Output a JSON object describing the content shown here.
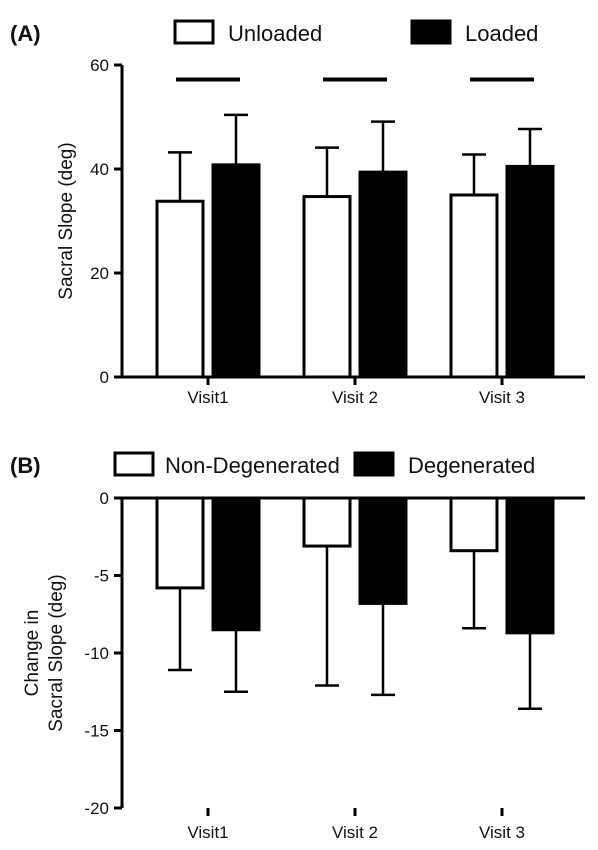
{
  "chart_data": [
    {
      "type": "bar",
      "panel_label": "(A)",
      "categories": [
        "Visit1",
        "Visit 2",
        "Visit 3"
      ],
      "ylabel": [
        "Sacral Slope (deg)"
      ],
      "ylim": [
        0,
        60
      ],
      "yticks": [
        "0",
        "20",
        "40",
        "60"
      ],
      "legend_position": "top",
      "grid": false,
      "series": [
        {
          "name": "Unloaded",
          "fill": "#ffffff",
          "values": [
            33.8,
            34.7,
            35.0
          ],
          "error": [
            9.4,
            9.4,
            7.8
          ]
        },
        {
          "name": "Loaded",
          "fill": "#000000",
          "values": [
            40.8,
            39.4,
            40.5
          ],
          "error": [
            9.6,
            9.7,
            7.2
          ]
        }
      ],
      "significance_bars": [
        {
          "category": "Visit1",
          "y": 57.2
        },
        {
          "category": "Visit 2",
          "y": 57.2
        },
        {
          "category": "Visit 3",
          "y": 57.2
        }
      ]
    },
    {
      "type": "bar",
      "panel_label": "(B)",
      "categories": [
        "Visit1",
        "Visit 2",
        "Visit 3"
      ],
      "ylabel": [
        "Change in",
        "Sacral Slope (deg)"
      ],
      "ylim": [
        -20,
        0
      ],
      "yticks": [
        "0",
        "-5",
        "-10",
        "-15",
        "-20"
      ],
      "legend_position": "top",
      "grid": false,
      "series": [
        {
          "name": "Non-Degenerated",
          "fill": "#ffffff",
          "values": [
            -5.8,
            -3.1,
            -3.4
          ],
          "error": [
            5.3,
            9.0,
            5.0
          ]
        },
        {
          "name": "Degenerated",
          "fill": "#000000",
          "values": [
            -8.5,
            -6.8,
            -8.7
          ],
          "error": [
            4.0,
            5.9,
            4.9
          ]
        }
      ]
    }
  ]
}
